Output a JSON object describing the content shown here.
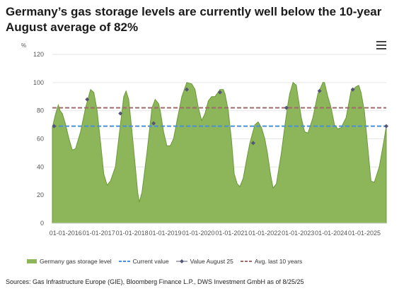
{
  "title": "Germany’s gas storage levels are currently well below the 10-year August average of 82%",
  "menu_icon": "hamburger-menu-icon",
  "source": "Sources: Gas Infrastructure Europe (GIE), Bloomberg Finance L.P., DWS Investment GmbH as of 8/25/25",
  "chart_data": {
    "type": "area",
    "ylabel_unit": "%",
    "ylim": [
      0,
      120
    ],
    "yticks": [
      "0",
      "20",
      "40",
      "60",
      "80",
      "100",
      "120"
    ],
    "xlim": [
      2015.6,
      2025.66
    ],
    "xticks": [
      {
        "label": "01-01-2016",
        "x": 2016
      },
      {
        "label": "01-01-2017",
        "x": 2017
      },
      {
        "label": "01-01-2018",
        "x": 2018
      },
      {
        "label": "01-01-2019",
        "x": 2019
      },
      {
        "label": "01-01-2020",
        "x": 2020
      },
      {
        "label": "01-01-2021",
        "x": 2021
      },
      {
        "label": "01-01-2022",
        "x": 2022
      },
      {
        "label": "01-01-2023",
        "x": 2023
      },
      {
        "label": "01-01-2024",
        "x": 2024
      },
      {
        "label": "01-01-2025",
        "x": 2025
      }
    ],
    "storage": {
      "x": [
        2015.6,
        2015.7,
        2015.78,
        2015.83,
        2015.9,
        2016.0,
        2016.1,
        2016.2,
        2016.3,
        2016.45,
        2016.6,
        2016.75,
        2016.85,
        2016.95,
        2017.05,
        2017.15,
        2017.25,
        2017.35,
        2017.5,
        2017.65,
        2017.75,
        2017.82,
        2017.9,
        2018.0,
        2018.1,
        2018.17,
        2018.22,
        2018.3,
        2018.45,
        2018.6,
        2018.7,
        2018.8,
        2018.85,
        2018.95,
        2019.05,
        2019.15,
        2019.25,
        2019.35,
        2019.5,
        2019.65,
        2019.8,
        2019.9,
        2020.0,
        2020.1,
        2020.2,
        2020.3,
        2020.4,
        2020.5,
        2020.65,
        2020.75,
        2020.8,
        2020.9,
        2021.0,
        2021.08,
        2021.17,
        2021.25,
        2021.35,
        2021.45,
        2021.55,
        2021.7,
        2021.8,
        2021.9,
        2022.0,
        2022.08,
        2022.17,
        2022.25,
        2022.35,
        2022.5,
        2022.62,
        2022.7,
        2022.75,
        2022.85,
        2022.95,
        2023.0,
        2023.1,
        2023.2,
        2023.3,
        2023.45,
        2023.6,
        2023.75,
        2023.8,
        2023.9,
        2024.0,
        2024.1,
        2024.2,
        2024.3,
        2024.45,
        2024.6,
        2024.75,
        2024.83,
        2024.9,
        2025.0,
        2025.1,
        2025.2,
        2025.3,
        2025.45,
        2025.6,
        2025.66
      ],
      "y": [
        68,
        78,
        84,
        80,
        78,
        70,
        60,
        52,
        53,
        65,
        82,
        95,
        93,
        80,
        58,
        35,
        27,
        30,
        40,
        70,
        90,
        94,
        88,
        65,
        40,
        22,
        15,
        22,
        50,
        82,
        88,
        85,
        80,
        65,
        55,
        55,
        60,
        72,
        90,
        100,
        99,
        95,
        82,
        73,
        78,
        87,
        90,
        90,
        95,
        95,
        92,
        80,
        58,
        35,
        28,
        26,
        32,
        45,
        57,
        70,
        72,
        68,
        60,
        50,
        35,
        25,
        28,
        50,
        72,
        85,
        92,
        100,
        98,
        90,
        75,
        65,
        64,
        75,
        92,
        100,
        100,
        90,
        82,
        70,
        67,
        68,
        75,
        94,
        97,
        98,
        93,
        80,
        55,
        30,
        29,
        40,
        60,
        69
      ]
    },
    "current_value": 69,
    "avg_last_10_years": 82,
    "august_25_values": {
      "x": [
        2015.65,
        2016.65,
        2017.65,
        2018.65,
        2019.65,
        2020.65,
        2021.65,
        2022.65,
        2023.65,
        2024.65,
        2025.66
      ],
      "y": [
        69,
        88,
        78,
        71,
        95,
        93,
        57,
        82,
        94,
        95,
        69
      ]
    },
    "colors": {
      "area": "#8db55a",
      "area_line": "#6a9a3a",
      "current": "#4a90d9",
      "avg": "#a06a6a",
      "marker": "#555577"
    },
    "legend": {
      "storage": "Germany gas storage level",
      "current": "Current value",
      "august": "Value August 25",
      "avg": "Avg. last 10 years"
    }
  }
}
